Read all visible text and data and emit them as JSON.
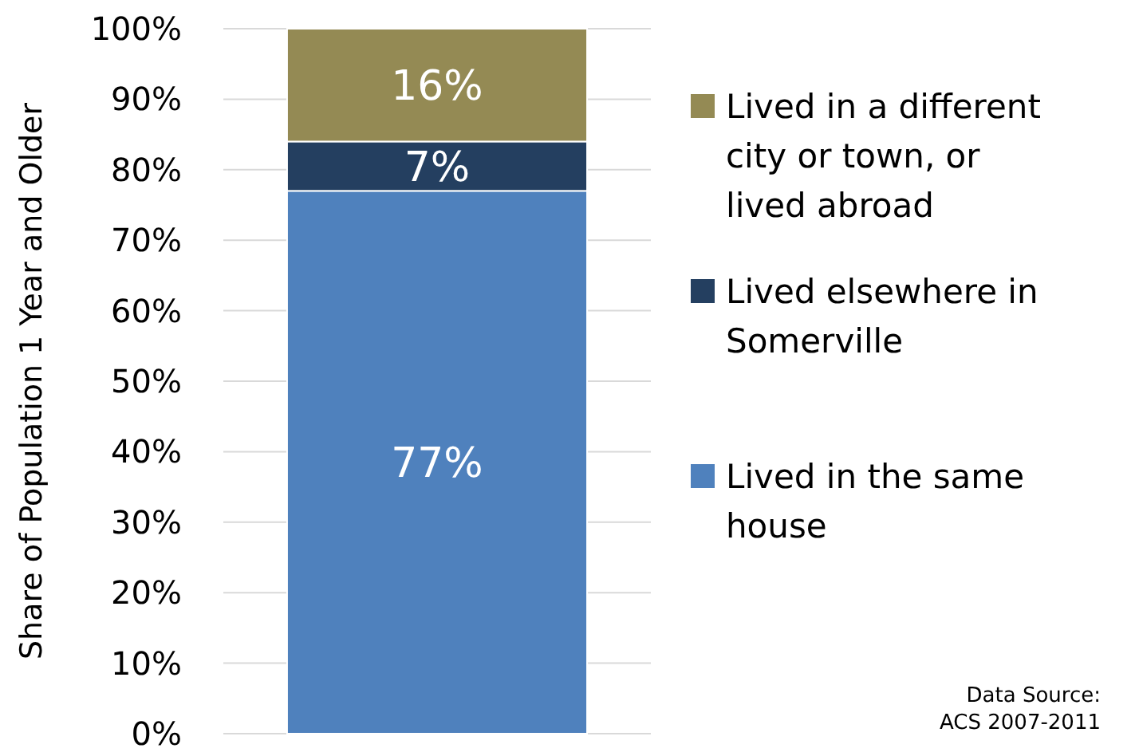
{
  "chart_data": {
    "type": "bar",
    "stacked": true,
    "categories": [
      null
    ],
    "ylabel": "Share of Population 1 Year and Older",
    "series": [
      {
        "name": "Lived in the same house",
        "color": "#4f81bd",
        "values": [
          77
        ],
        "value_labels": [
          "77%"
        ]
      },
      {
        "name": "Lived elsewhere in Somerville",
        "color": "#243f60",
        "values": [
          7
        ],
        "value_labels": [
          "7%"
        ]
      },
      {
        "name": "Lived in a different city or town, or lived abroad",
        "color": "#948a54",
        "values": [
          16
        ],
        "value_labels": [
          "16%"
        ]
      }
    ],
    "ylim": [
      0,
      100
    ],
    "yticks": [
      {
        "value": 0,
        "label": "0%"
      },
      {
        "value": 10,
        "label": "10%"
      },
      {
        "value": 20,
        "label": "20%"
      },
      {
        "value": 30,
        "label": "30%"
      },
      {
        "value": 40,
        "label": "40%"
      },
      {
        "value": 50,
        "label": "50%"
      },
      {
        "value": 60,
        "label": "60%"
      },
      {
        "value": 70,
        "label": "70%"
      },
      {
        "value": 80,
        "label": "80%"
      },
      {
        "value": 90,
        "label": "90%"
      },
      {
        "value": 100,
        "label": "100%"
      }
    ],
    "grid": "y",
    "legend": "right",
    "annotations": [
      "Data Source:\nACS 2007-2011"
    ]
  }
}
